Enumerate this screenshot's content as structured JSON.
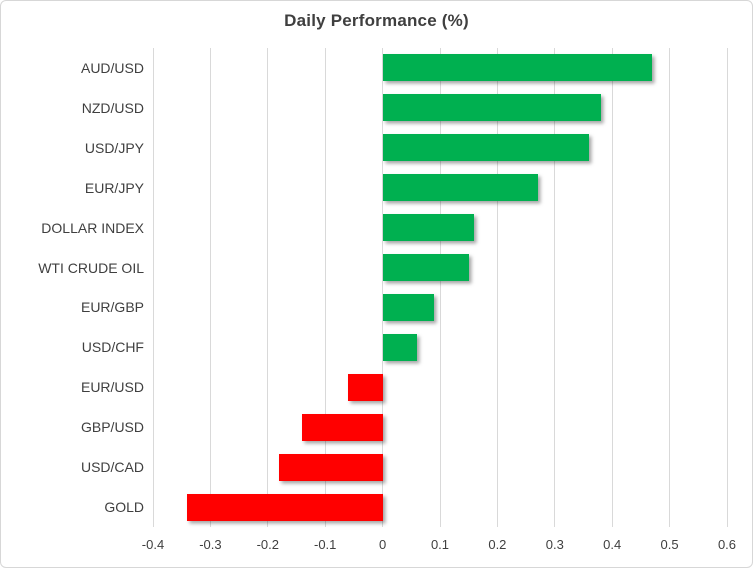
{
  "chart_data": {
    "type": "bar",
    "orientation": "horizontal",
    "title": "Daily Performance (%)",
    "categories": [
      "AUD/USD",
      "NZD/USD",
      "USD/JPY",
      "EUR/JPY",
      "DOLLAR INDEX",
      "WTI CRUDE OIL",
      "EUR/GBP",
      "USD/CHF",
      "EUR/USD",
      "GBP/USD",
      "USD/CAD",
      "GOLD"
    ],
    "values": [
      0.47,
      0.38,
      0.36,
      0.27,
      0.16,
      0.15,
      0.09,
      0.06,
      -0.06,
      -0.14,
      -0.18,
      -0.34
    ],
    "xlim": [
      -0.4,
      0.6
    ],
    "xticks": [
      -0.4,
      -0.3,
      -0.2,
      -0.1,
      0,
      0.1,
      0.2,
      0.3,
      0.4,
      0.5,
      0.6
    ],
    "xtick_labels": [
      "-0.4",
      "-0.3",
      "-0.2",
      "-0.1",
      "0",
      "0.1",
      "0.2",
      "0.3",
      "0.4",
      "0.5",
      "0.6"
    ],
    "xlabel": "",
    "ylabel": "",
    "grid": true,
    "legend": false,
    "colors": {
      "positive_bar": "#00B050",
      "negative_bar": "#FF0000",
      "gridline": "#D9D9D9",
      "title_text": "#3F3F3F",
      "axis_text": "#3F3F3F",
      "frame_border": "#D7D7D7",
      "background": "#FFFFFF"
    }
  }
}
